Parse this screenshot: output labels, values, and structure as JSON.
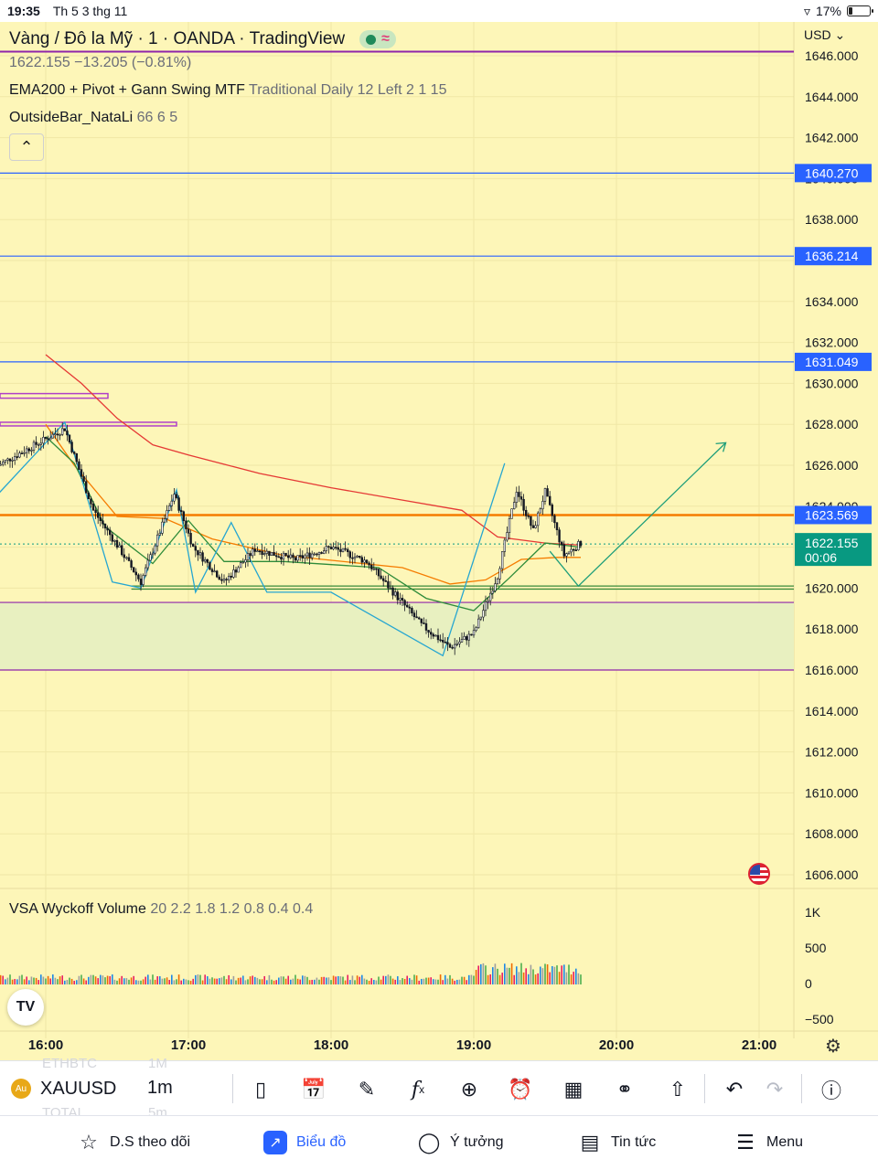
{
  "status_bar": {
    "time": "19:35",
    "date": "Th 5 3 thg 11",
    "battery": "17%"
  },
  "legend": {
    "symbol_title": "Vàng / Đô la Mỹ · 1 · OANDA · TradingView",
    "price_line": "1622.155 −13.205 (−0.81%)",
    "indicator1_name": "EMA200 + Pivot + Gann Swing MTF",
    "indicator1_params": "Traditional Daily 12 Left 2 1 15",
    "indicator2_name": "OutsideBar_NataLi",
    "indicator2_params": "66 6 5",
    "volume_name": "VSA Wyckoff Volume",
    "volume_params": "20 2.2 1.8 1.2 0.8 0.4 0.4"
  },
  "price_axis": {
    "currency": "USD",
    "labels": [
      "1646.000",
      "1644.000",
      "1642.000",
      "1640.000",
      "1638.000",
      "1636.000",
      "1634.000",
      "1632.000",
      "1630.000",
      "1628.000",
      "1626.000",
      "1624.000",
      "1622.000",
      "1620.000",
      "1618.000",
      "1616.000",
      "1614.000",
      "1612.000",
      "1610.000",
      "1608.000",
      "1606.000"
    ],
    "tags": [
      {
        "label": "1640.270",
        "value": 1640.27,
        "color": "#2962ff"
      },
      {
        "label": "1636.214",
        "value": 1636.214,
        "color": "#2962ff"
      },
      {
        "label": "1631.049",
        "value": 1631.049,
        "color": "#2962ff"
      },
      {
        "label": "1623.569",
        "value": 1623.569,
        "color": "#2962ff"
      }
    ],
    "current": {
      "label": "1622.155",
      "value": 1622.155,
      "countdown": "00:06",
      "color": "#089981"
    }
  },
  "volume_axis": {
    "labels": [
      "1K",
      "500",
      "0",
      "−500"
    ]
  },
  "time_axis": {
    "labels": [
      "16:00",
      "17:00",
      "18:00",
      "19:00",
      "20:00",
      "21:00"
    ]
  },
  "toolbar": {
    "symbol": "XAUUSD",
    "timeframe": "1m",
    "ghost_symbol_above": "ETHBTC",
    "ghost_tf_above": "1M",
    "ghost_symbol_below": "TOTAL",
    "ghost_tf_below": "5m"
  },
  "bottom_nav": [
    {
      "label": "D.S theo dõi",
      "icon": "star-icon"
    },
    {
      "label": "Biểu đồ",
      "icon": "chart-icon",
      "active": true
    },
    {
      "label": "Ý tưởng",
      "icon": "ideas-icon"
    },
    {
      "label": "Tin tức",
      "icon": "news-icon"
    },
    {
      "label": "Menu",
      "icon": "menu-icon"
    }
  ],
  "colors": {
    "background": "#fdf6b8",
    "ema_long": "#e53935",
    "ema_mid": "#f57c00",
    "ema_short": "#2e8b3a",
    "zigzag": "#26a6d1",
    "arrow": "#1e9e7a",
    "pivot_line": "#2962ff",
    "resistance": "#f57c00",
    "support_zone": "#e8f0c0",
    "purple_line": "#8e24aa",
    "candle": "#131722"
  }
}
